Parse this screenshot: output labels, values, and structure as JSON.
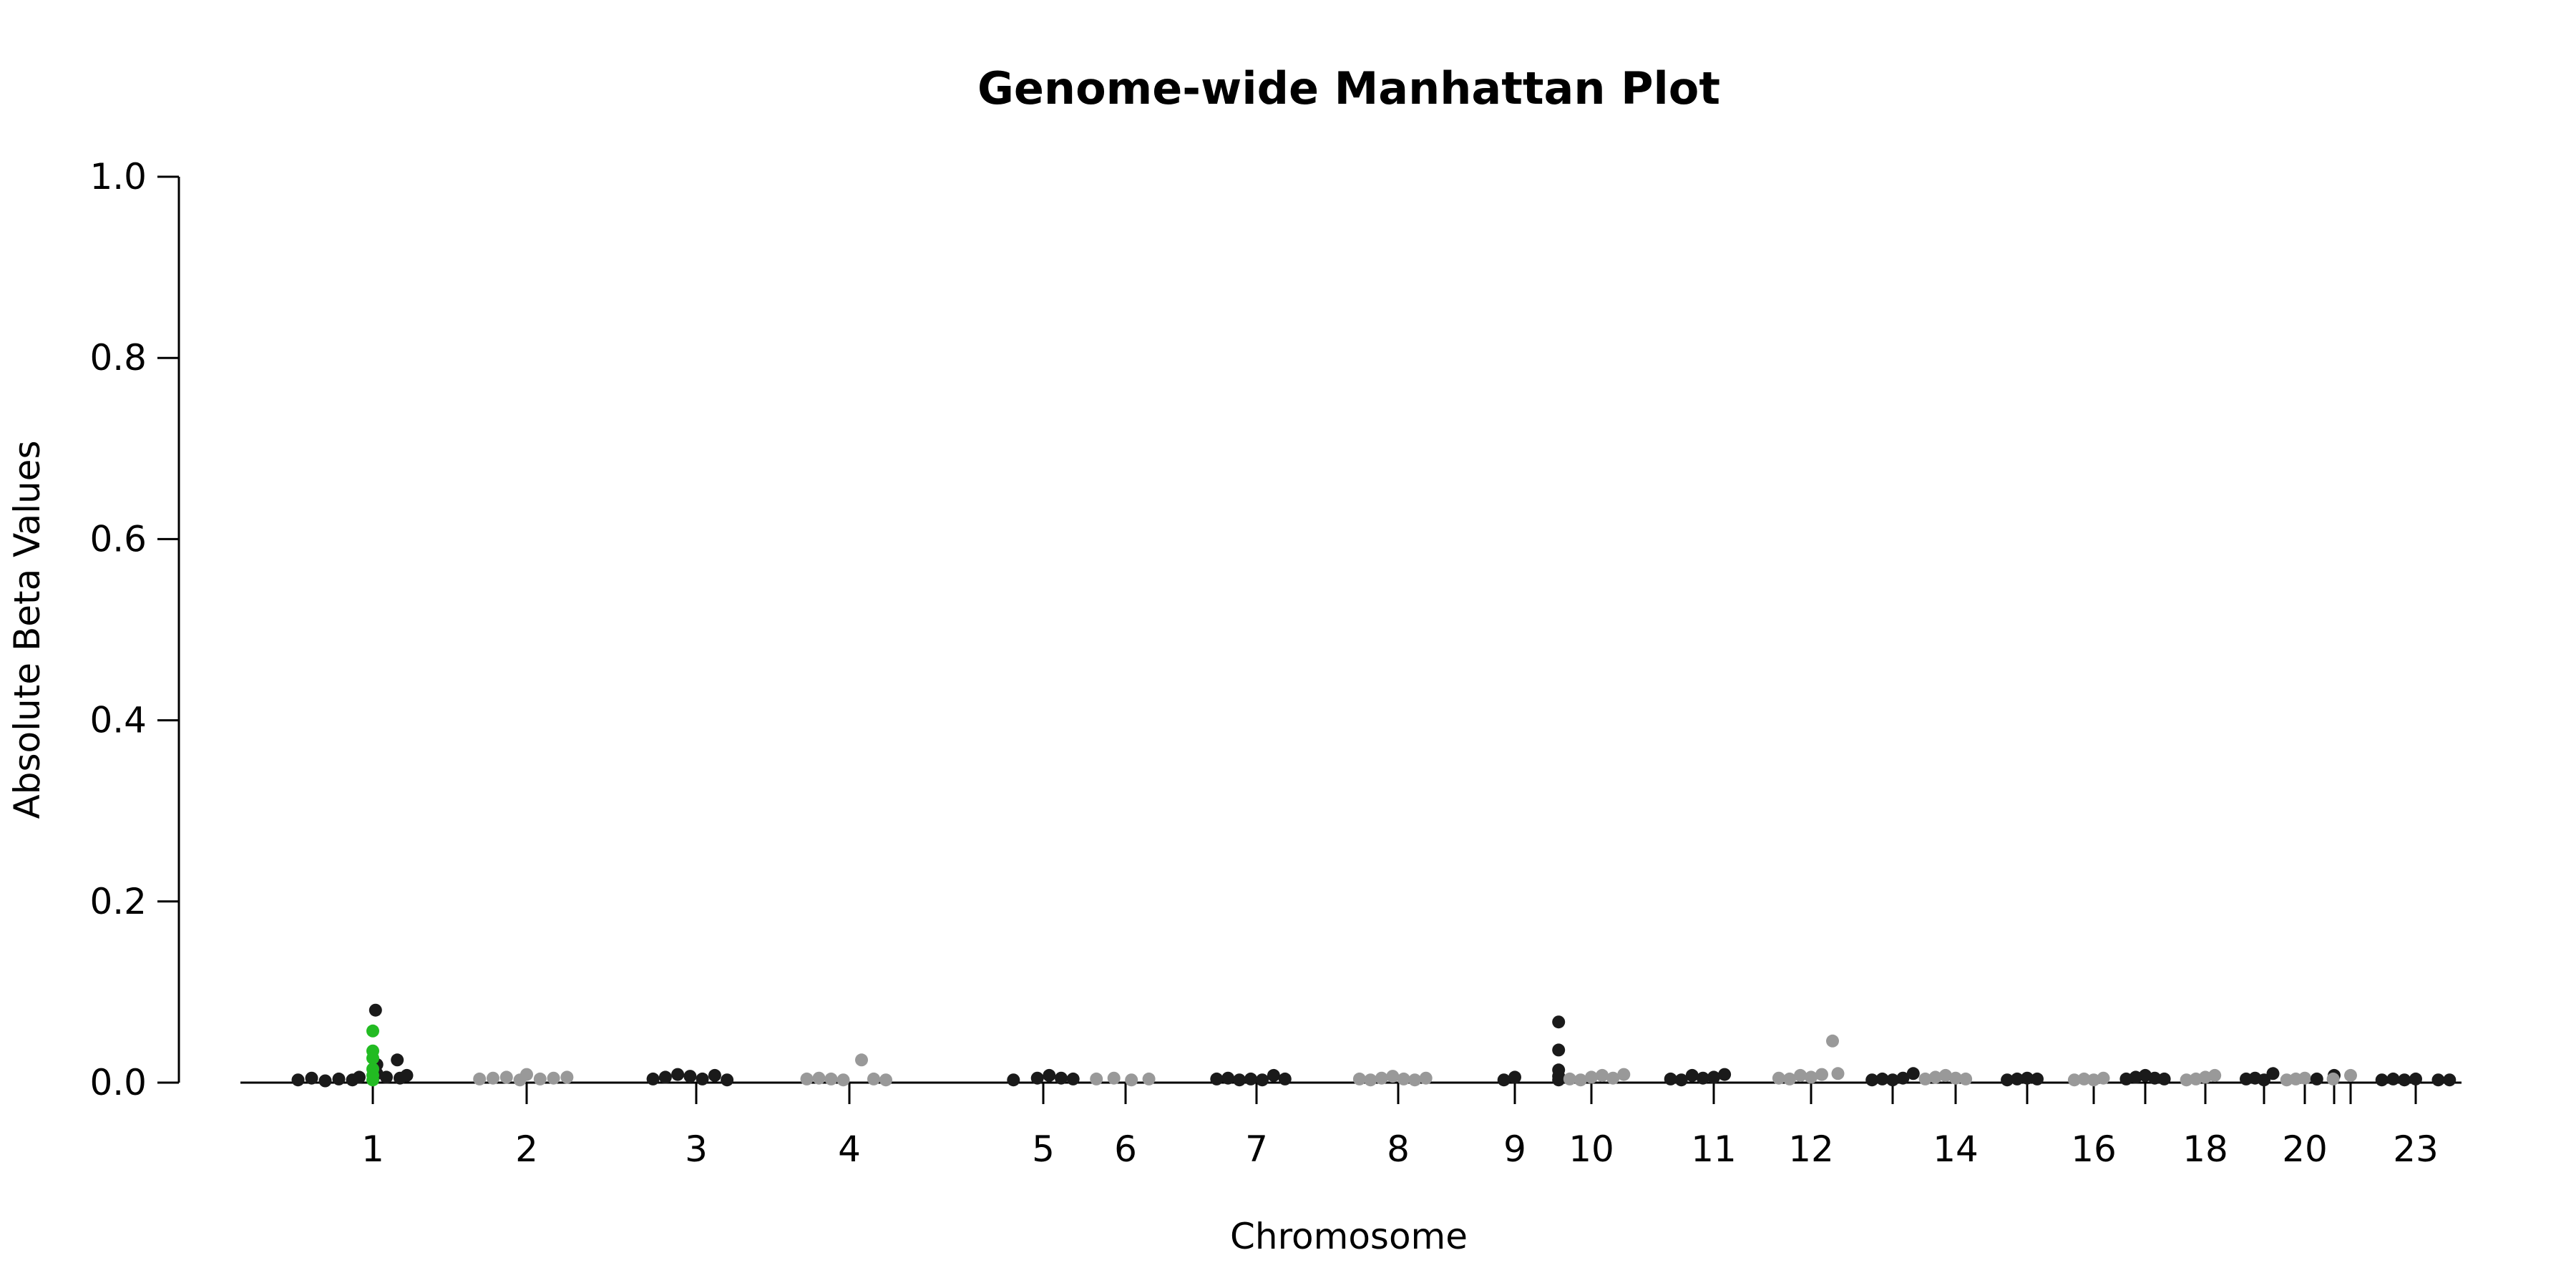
{
  "chart_data": {
    "type": "scatter",
    "title": "Genome-wide Manhattan Plot",
    "xlabel": "Chromosome",
    "ylabel": "Absolute Beta Values",
    "ylim": [
      0,
      1.0
    ],
    "y_ticks": [
      "0.0",
      "0.2",
      "0.4",
      "0.6",
      "0.8",
      "1.0"
    ],
    "x_tick_labels": [
      "1",
      "2",
      "3",
      "4",
      "5",
      "6",
      "7",
      "8",
      "9",
      "10",
      "11",
      "12",
      "14",
      "16",
      "18",
      "20",
      "23"
    ],
    "grid": false,
    "legend": "none",
    "colors": {
      "odd_chromosome": "#1a1a1a",
      "even_chromosome": "#999999",
      "highlight": "#22bb22"
    },
    "series": [
      {
        "chromosome": "1",
        "color": "odd_chromosome",
        "x": [
          -0.55,
          -0.45,
          -0.35,
          -0.25,
          -0.15,
          -0.1,
          0.02,
          0.03,
          0.03,
          0.1,
          0.18,
          0.2,
          0.25
        ],
        "y": [
          0.003,
          0.005,
          0.002,
          0.004,
          0.003,
          0.006,
          0.08,
          0.02,
          0.01,
          0.006,
          0.025,
          0.005,
          0.008
        ]
      },
      {
        "chromosome": "1",
        "color": "highlight",
        "x": [
          0.0,
          0.0,
          0.0,
          0.0,
          0.0,
          0.0
        ],
        "y": [
          0.057,
          0.035,
          0.027,
          0.015,
          0.008,
          0.003
        ]
      },
      {
        "chromosome": "2",
        "color": "even_chromosome",
        "x": [
          -0.35,
          -0.25,
          -0.15,
          -0.05,
          0.0,
          0.1,
          0.2,
          0.3
        ],
        "y": [
          0.004,
          0.005,
          0.006,
          0.003,
          0.009,
          0.004,
          0.005,
          0.006
        ]
      },
      {
        "chromosome": "3",
        "color": "odd_chromosome",
        "x": [
          -0.35,
          -0.25,
          -0.15,
          -0.05,
          0.05,
          0.15,
          0.25
        ],
        "y": [
          0.004,
          0.006,
          0.009,
          0.007,
          0.004,
          0.008,
          0.003
        ]
      },
      {
        "chromosome": "4",
        "color": "even_chromosome",
        "x": [
          -0.35,
          -0.25,
          -0.15,
          -0.05,
          0.1,
          0.2,
          0.3
        ],
        "y": [
          0.004,
          0.005,
          0.004,
          0.003,
          0.025,
          0.004,
          0.003
        ]
      },
      {
        "chromosome": "5",
        "color": "odd_chromosome",
        "x": [
          -0.25,
          -0.05,
          0.05,
          0.15,
          0.25
        ],
        "y": [
          0.003,
          0.005,
          0.008,
          0.005,
          0.004
        ]
      },
      {
        "chromosome": "6",
        "color": "even_chromosome",
        "x": [
          -0.25,
          -0.1,
          0.05,
          0.2
        ],
        "y": [
          0.004,
          0.005,
          0.003,
          0.004
        ]
      },
      {
        "chromosome": "7",
        "color": "odd_chromosome",
        "x": [
          -0.35,
          -0.25,
          -0.15,
          -0.05,
          0.05,
          0.15,
          0.25
        ],
        "y": [
          0.004,
          0.005,
          0.003,
          0.004,
          0.003,
          0.008,
          0.004
        ]
      },
      {
        "chromosome": "8",
        "color": "even_chromosome",
        "x": [
          -0.35,
          -0.25,
          -0.15,
          -0.05,
          0.05,
          0.15,
          0.25
        ],
        "y": [
          0.004,
          0.003,
          0.005,
          0.007,
          0.004,
          0.003,
          0.005
        ]
      },
      {
        "chromosome": "9",
        "color": "odd_chromosome",
        "x": [
          -0.1,
          0.0,
          0.4,
          0.4,
          0.4,
          0.4,
          0.4
        ],
        "y": [
          0.003,
          0.006,
          0.067,
          0.036,
          0.014,
          0.007,
          0.003
        ]
      },
      {
        "chromosome": "10",
        "color": "even_chromosome",
        "x": [
          -0.2,
          -0.1,
          0.0,
          0.1,
          0.2,
          0.3
        ],
        "y": [
          0.004,
          0.003,
          0.006,
          0.008,
          0.005,
          0.009
        ]
      },
      {
        "chromosome": "11",
        "color": "odd_chromosome",
        "x": [
          -0.4,
          -0.3,
          -0.2,
          -0.1,
          0.0,
          0.1
        ],
        "y": [
          0.004,
          0.003,
          0.008,
          0.005,
          0.006,
          0.009
        ]
      },
      {
        "chromosome": "12",
        "color": "even_chromosome",
        "x": [
          -0.3,
          -0.2,
          -0.1,
          0.0,
          0.1,
          0.2,
          0.25
        ],
        "y": [
          0.005,
          0.004,
          0.008,
          0.006,
          0.009,
          0.046,
          0.01
        ]
      },
      {
        "chromosome": "13",
        "color": "odd_chromosome",
        "x": [
          -0.2,
          -0.1,
          0.0,
          0.1,
          0.2
        ],
        "y": [
          0.003,
          0.004,
          0.003,
          0.005,
          0.01
        ]
      },
      {
        "chromosome": "14",
        "color": "even_chromosome",
        "x": [
          -0.3,
          -0.2,
          -0.1,
          0.0,
          0.1
        ],
        "y": [
          0.004,
          0.006,
          0.008,
          0.005,
          0.004
        ]
      },
      {
        "chromosome": "15",
        "color": "odd_chromosome",
        "x": [
          -0.2,
          -0.1,
          0.0,
          0.1
        ],
        "y": [
          0.003,
          0.004,
          0.005,
          0.004
        ]
      },
      {
        "chromosome": "16",
        "color": "even_chromosome",
        "x": [
          -0.2,
          -0.1,
          0.0,
          0.1
        ],
        "y": [
          0.003,
          0.004,
          0.003,
          0.005
        ]
      },
      {
        "chromosome": "17",
        "color": "odd_chromosome",
        "x": [
          -0.2,
          -0.1,
          0.0,
          0.1,
          0.2
        ],
        "y": [
          0.004,
          0.006,
          0.008,
          0.005,
          0.004
        ]
      },
      {
        "chromosome": "18",
        "color": "even_chromosome",
        "x": [
          -0.2,
          -0.1,
          0.0,
          0.1
        ],
        "y": [
          0.003,
          0.004,
          0.006,
          0.008
        ]
      },
      {
        "chromosome": "19",
        "color": "odd_chromosome",
        "x": [
          -0.2,
          -0.1,
          0.0,
          0.1
        ],
        "y": [
          0.004,
          0.005,
          0.003,
          0.01
        ]
      },
      {
        "chromosome": "20",
        "color": "even_chromosome",
        "x": [
          -0.2,
          -0.1,
          0.0
        ],
        "y": [
          0.003,
          0.004,
          0.005
        ]
      },
      {
        "chromosome": "21",
        "color": "odd_chromosome",
        "x": [
          -0.2,
          0.0
        ],
        "y": [
          0.004,
          0.008
        ]
      },
      {
        "chromosome": "22",
        "color": "even_chromosome",
        "x": [
          -0.2,
          0.0
        ],
        "y": [
          0.004,
          0.008
        ]
      },
      {
        "chromosome": "23",
        "color": "odd_chromosome",
        "x": [
          -0.3,
          -0.2,
          -0.1,
          0.0,
          0.2,
          0.3
        ],
        "y": [
          0.003,
          0.004,
          0.003,
          0.004,
          0.003,
          0.003
        ]
      }
    ]
  }
}
